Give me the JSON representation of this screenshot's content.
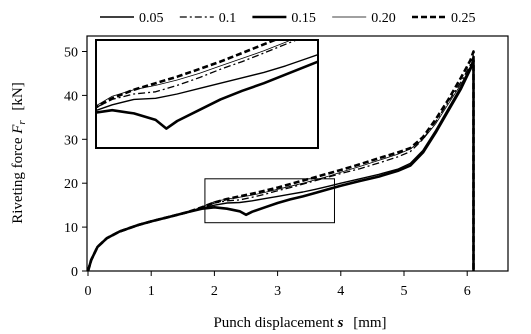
{
  "chart_data": {
    "type": "line",
    "xlabel": "Punch displacement",
    "xlabel_symbol": "s",
    "xlabel_unit": "[mm]",
    "ylabel": "Riveting force",
    "ylabel_symbol": "F",
    "ylabel_subscript": "r",
    "ylabel_unit": "[kN]",
    "xlim": [
      0,
      6.5
    ],
    "ylim": [
      0,
      53
    ],
    "xticks": [
      0,
      1,
      2,
      3,
      4,
      5,
      6
    ],
    "yticks": [
      0,
      10,
      20,
      30,
      40,
      50
    ],
    "grid": false,
    "legend_position": "top",
    "inset": {
      "zoom_region": {
        "x": [
          1.85,
          3.9
        ],
        "y": [
          11,
          21
        ]
      },
      "placement": "top-left"
    },
    "series": [
      {
        "name": "0.05",
        "style": "solid-thin",
        "x": [
          0,
          0.05,
          0.15,
          0.3,
          0.5,
          0.8,
          1.0,
          1.3,
          1.6,
          1.8,
          2.0,
          2.2,
          2.4,
          2.6,
          2.8,
          3.0,
          3.2,
          3.4,
          3.6,
          3.8,
          4.0,
          4.3,
          4.6,
          4.9,
          5.1,
          5.3,
          5.5,
          5.7,
          5.9,
          6.05,
          6.1,
          6.1
        ],
        "y": [
          0,
          2.5,
          5.5,
          7.5,
          9.0,
          10.5,
          11.3,
          12.4,
          13.5,
          14.3,
          15.0,
          15.5,
          15.6,
          16.0,
          16.5,
          17.0,
          17.5,
          18.0,
          18.6,
          19.3,
          20.0,
          21.0,
          22.0,
          23.2,
          24.5,
          27.5,
          32.0,
          37.0,
          42.0,
          46.5,
          48.5,
          0
        ]
      },
      {
        "name": "0.1",
        "style": "dash-dot",
        "x": [
          0,
          0.05,
          0.15,
          0.3,
          0.5,
          0.8,
          1.0,
          1.3,
          1.6,
          1.8,
          2.0,
          2.2,
          2.4,
          2.6,
          2.8,
          3.0,
          3.2,
          3.4,
          3.6,
          3.8,
          4.0,
          4.3,
          4.6,
          4.9,
          5.1,
          5.3,
          5.5,
          5.7,
          5.9,
          6.05,
          6.1,
          6.1
        ],
        "y": [
          0,
          2.5,
          5.5,
          7.5,
          9.0,
          10.5,
          11.3,
          12.4,
          13.5,
          14.5,
          15.5,
          16.0,
          16.2,
          16.8,
          17.5,
          18.3,
          19.0,
          19.8,
          20.6,
          21.4,
          22.2,
          23.3,
          24.6,
          26.0,
          27.2,
          30.0,
          34.0,
          38.5,
          43.0,
          47.0,
          49.0,
          0
        ]
      },
      {
        "name": "0.15",
        "style": "solid-thick",
        "x": [
          0,
          0.05,
          0.15,
          0.3,
          0.5,
          0.8,
          1.0,
          1.3,
          1.6,
          1.8,
          2.0,
          2.2,
          2.4,
          2.5,
          2.6,
          2.8,
          3.0,
          3.2,
          3.4,
          3.6,
          3.8,
          4.0,
          4.3,
          4.6,
          4.9,
          5.1,
          5.3,
          5.5,
          5.7,
          5.9,
          6.05,
          6.1,
          6.1
        ],
        "y": [
          0,
          2.5,
          5.5,
          7.5,
          9.0,
          10.5,
          11.3,
          12.4,
          13.5,
          14.2,
          14.5,
          14.2,
          13.6,
          12.8,
          13.5,
          14.5,
          15.5,
          16.3,
          17.0,
          17.8,
          18.6,
          19.4,
          20.5,
          21.5,
          22.8,
          24.0,
          27.0,
          31.5,
          36.5,
          41.5,
          46.0,
          48.0,
          0
        ]
      },
      {
        "name": "0.20",
        "style": "solid-hairline",
        "x": [
          0,
          0.05,
          0.15,
          0.3,
          0.5,
          0.8,
          1.0,
          1.3,
          1.6,
          1.8,
          2.0,
          2.2,
          2.4,
          2.6,
          2.8,
          3.0,
          3.2,
          3.4,
          3.6,
          3.8,
          4.0,
          4.3,
          4.6,
          4.9,
          5.1,
          5.3,
          5.5,
          5.7,
          5.9,
          6.05,
          6.1,
          6.1
        ],
        "y": [
          0,
          2.5,
          5.5,
          7.5,
          9.0,
          10.5,
          11.3,
          12.4,
          13.5,
          14.6,
          15.8,
          16.4,
          16.8,
          17.3,
          17.9,
          18.6,
          19.3,
          20.0,
          20.8,
          21.6,
          22.5,
          23.8,
          25.2,
          26.6,
          27.8,
          30.0,
          33.5,
          38.0,
          42.5,
          46.5,
          48.5,
          0
        ]
      },
      {
        "name": "0.25",
        "style": "dashed-thick",
        "x": [
          0,
          0.05,
          0.15,
          0.3,
          0.5,
          0.8,
          1.0,
          1.3,
          1.6,
          1.8,
          2.0,
          2.2,
          2.4,
          2.6,
          2.8,
          3.0,
          3.2,
          3.4,
          3.6,
          3.8,
          4.0,
          4.3,
          4.6,
          4.9,
          5.1,
          5.3,
          5.5,
          5.7,
          5.9,
          6.05,
          6.1,
          6.1
        ],
        "y": [
          0,
          2.5,
          5.5,
          7.5,
          9.0,
          10.5,
          11.3,
          12.4,
          13.5,
          14.5,
          15.6,
          16.4,
          17.0,
          17.6,
          18.3,
          19.0,
          19.8,
          20.6,
          21.4,
          22.2,
          23.0,
          24.3,
          25.7,
          27.0,
          28.0,
          30.5,
          34.5,
          39.0,
          44.0,
          48.0,
          50.0,
          0
        ]
      }
    ]
  }
}
